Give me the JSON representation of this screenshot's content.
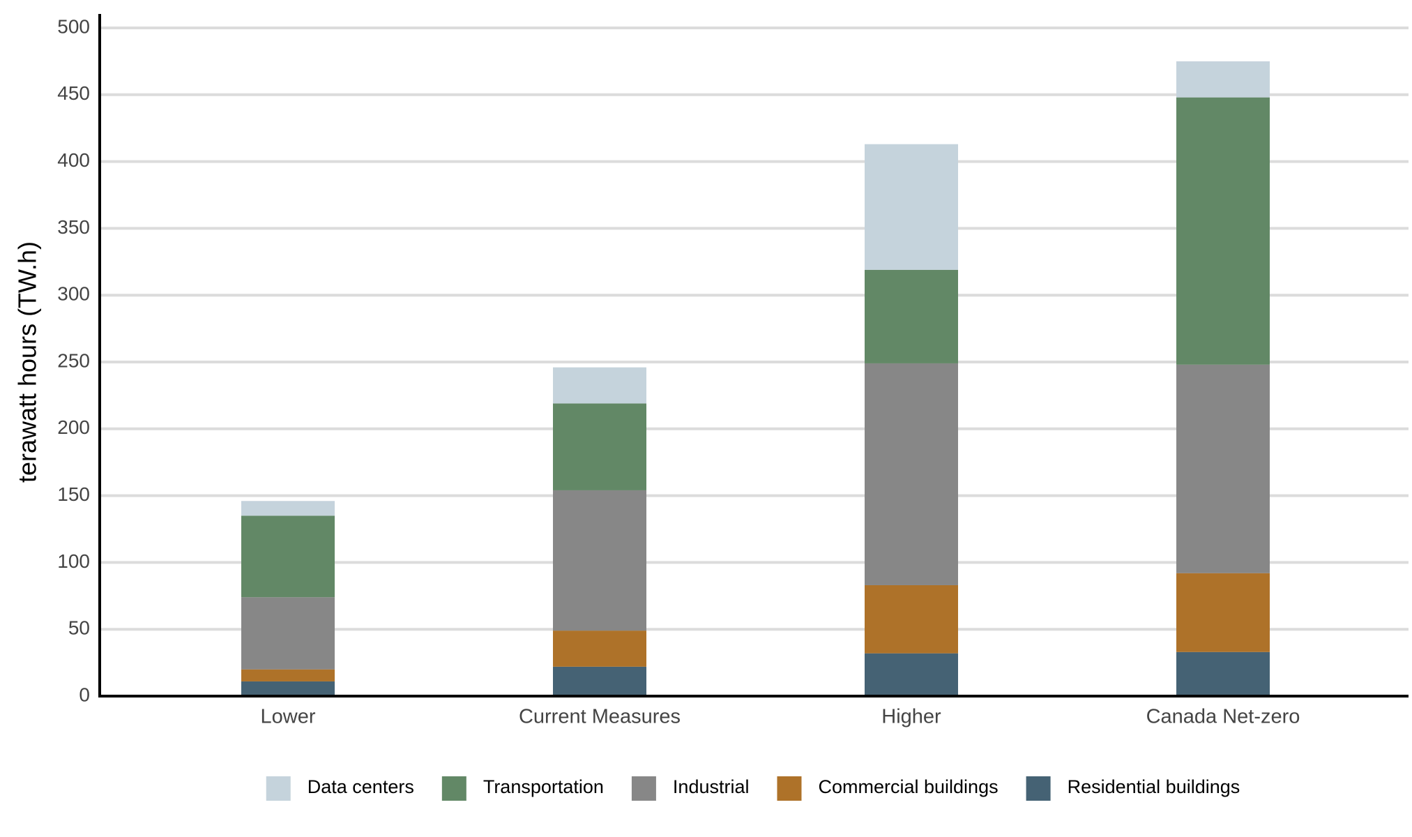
{
  "chart_data": {
    "type": "stacked_bar",
    "y_label": "terawatt hours (TW.h)",
    "categories": [
      "Lower",
      "Current Measures",
      "Higher",
      "Canada Net-zero"
    ],
    "series": [
      {
        "name": "Data centers",
        "color": "#c5d3dc",
        "values": [
          11,
          27,
          94,
          27
        ]
      },
      {
        "name": "Transportation",
        "color": "#628866",
        "values": [
          61,
          65,
          70,
          200
        ]
      },
      {
        "name": "Industrial",
        "color": "#878787",
        "values": [
          54,
          105,
          166,
          156
        ]
      },
      {
        "name": "Commercial buildings",
        "color": "#ae7229",
        "values": [
          9,
          27,
          51,
          59
        ]
      },
      {
        "name": "Residential buildings",
        "color": "#456274",
        "values": [
          11,
          22,
          32,
          33
        ]
      }
    ],
    "ylim": [
      0,
      500
    ],
    "yticks": [
      0,
      50,
      100,
      150,
      200,
      250,
      300,
      350,
      400,
      450,
      500
    ],
    "grid": true,
    "legend": "bottom"
  }
}
